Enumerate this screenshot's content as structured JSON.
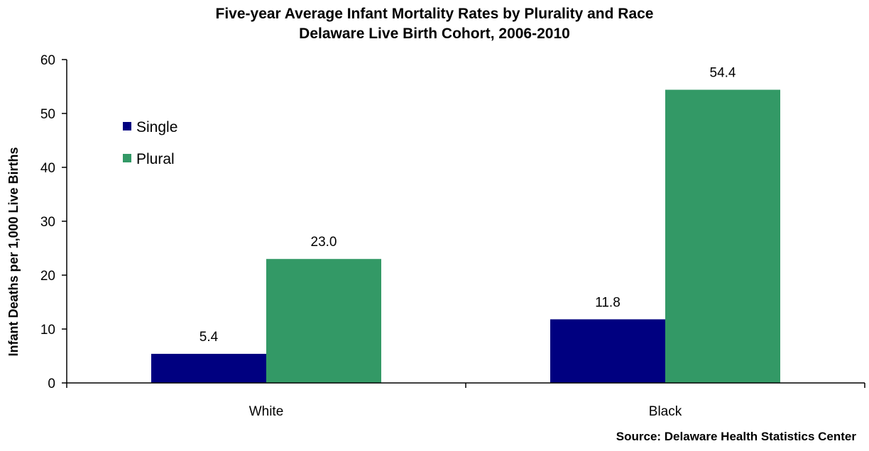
{
  "chart_data": {
    "type": "bar",
    "title": "Five-year Average Infant Mortality Rates by Plurality and Race",
    "subtitle": "Delaware Live Birth Cohort, 2006-2010",
    "categories": [
      "White",
      "Black"
    ],
    "series": [
      {
        "name": "Single",
        "values": [
          5.4,
          11.8
        ],
        "labels": [
          "5.4",
          "11.8"
        ],
        "color": "#000080"
      },
      {
        "name": "Plural",
        "values": [
          23.0,
          54.4
        ],
        "labels": [
          "23.0",
          "54.4"
        ],
        "color": "#339966"
      }
    ],
    "xlabel": "",
    "ylabel": "Infant Deaths per 1,000 Live Births",
    "ylim": [
      0,
      60
    ],
    "yticks": [
      "0",
      "10",
      "20",
      "30",
      "40",
      "50",
      "60"
    ],
    "grid": false,
    "legend": "top-left",
    "source": "Source: Delaware Health Statistics Center"
  }
}
